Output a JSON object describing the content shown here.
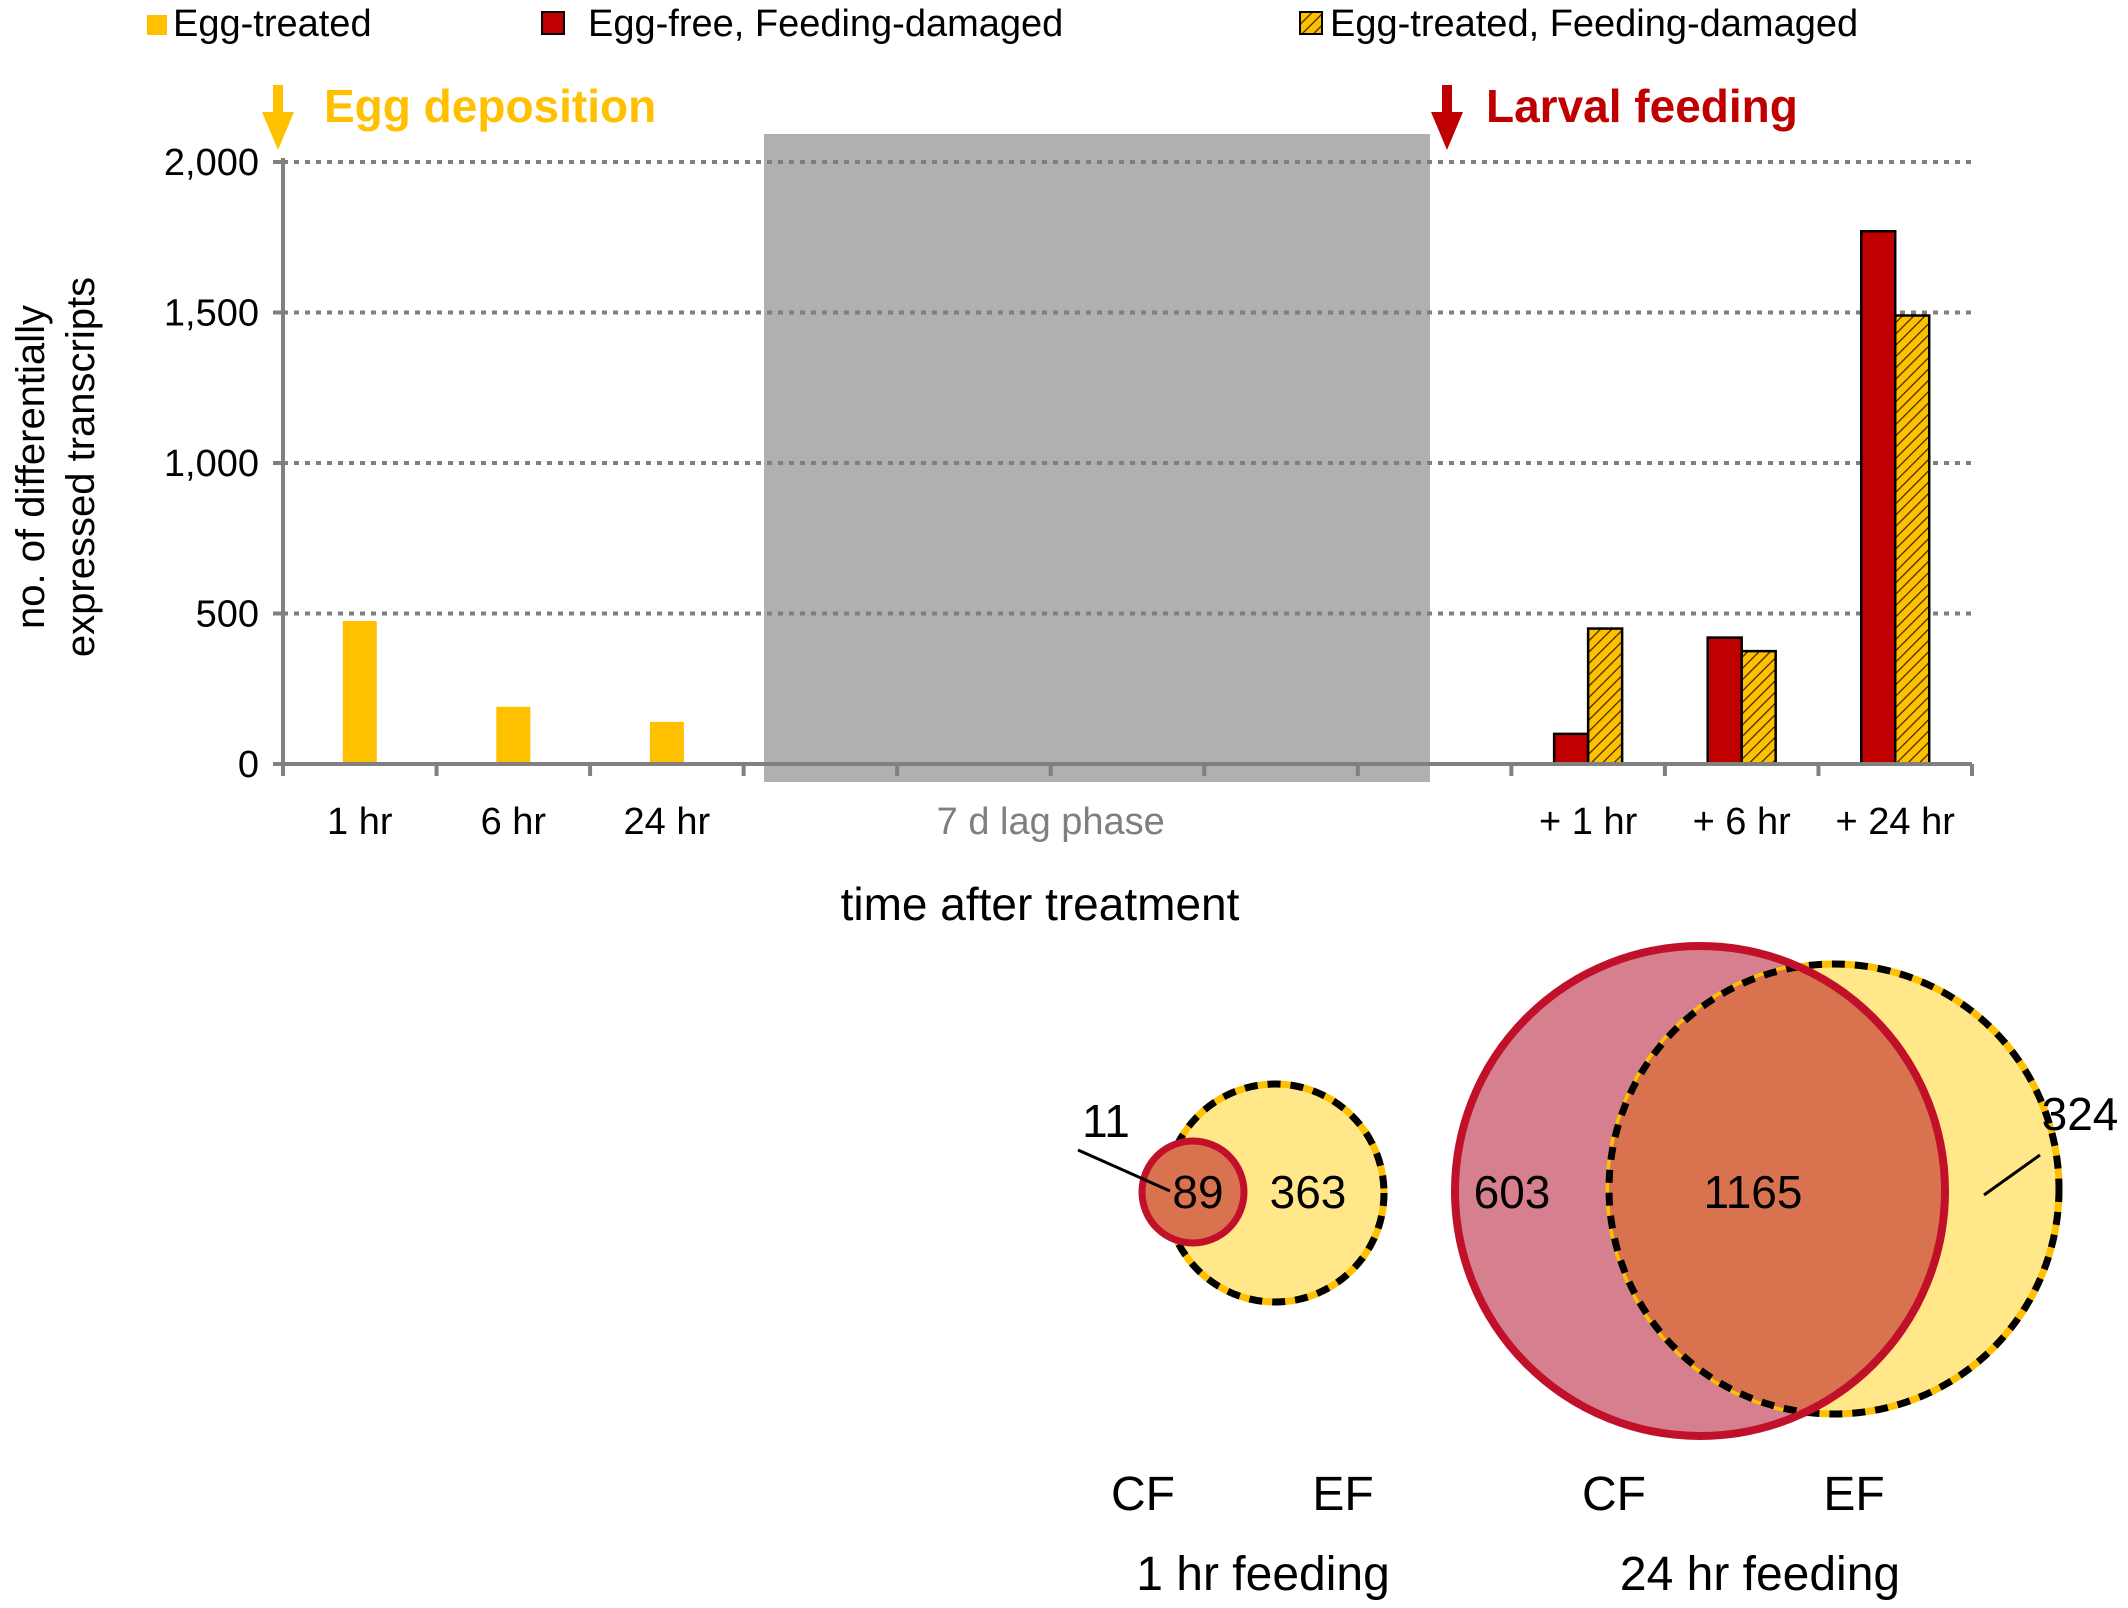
{
  "colors": {
    "egg_treated": "#FFC000",
    "egg_free": "#C00000",
    "lag_shade": "#B0B0B0",
    "grid": "#7F7F7F",
    "axis": "#808080",
    "venn_cf_fill": "#D67F8E",
    "venn_ef_fill": "#FFE78A",
    "venn_overlap_fill": "#D9734F",
    "venn_cf_stroke": "#C0102A"
  },
  "legend": [
    {
      "label": "Egg-treated",
      "style": "solid-yellow"
    },
    {
      "label": "Egg-free, Feeding-damaged",
      "style": "solid-red"
    },
    {
      "label": "Egg-treated, Feeding-damaged",
      "style": "hatched-yellow"
    }
  ],
  "annotations": {
    "egg_deposition": "Egg deposition",
    "larval_feeding": "Larval feeding",
    "lag_phase": "7 d lag phase"
  },
  "chart_data": [
    {
      "type": "bar",
      "xlabel": "time after treatment",
      "ylabel_line1": "no. of differentially",
      "ylabel_line2": "expressed transcripts",
      "ylim": [
        0,
        2000
      ],
      "yticks": [
        0,
        500,
        1000,
        1500,
        2000
      ],
      "ytick_labels": [
        "0",
        "500",
        "1,000",
        "1,500",
        "2,000"
      ],
      "grid": "horizontal dotted",
      "legend_position": "top",
      "categories": [
        "1 hr",
        "6 hr",
        "24 hr",
        "7 d lag phase",
        "+ 1 hr",
        "+ 6 hr",
        "+ 24 hr"
      ],
      "series": [
        {
          "name": "Egg-treated",
          "values": [
            475,
            190,
            140,
            null,
            null,
            null,
            null
          ]
        },
        {
          "name": "Egg-free, Feeding-damaged",
          "values": [
            null,
            null,
            null,
            null,
            100,
            420,
            1770
          ]
        },
        {
          "name": "Egg-treated, Feeding-damaged",
          "values": [
            null,
            null,
            null,
            null,
            450,
            375,
            1490
          ]
        }
      ]
    },
    {
      "type": "venn",
      "title": "1 hr feeding",
      "sets": [
        "CF",
        "EF"
      ],
      "only_cf": 11,
      "overlap": 89,
      "only_ef": 363
    },
    {
      "type": "venn",
      "title": "24 hr feeding",
      "sets": [
        "CF",
        "EF"
      ],
      "only_cf": 603,
      "overlap": 1165,
      "only_ef": 324
    }
  ]
}
